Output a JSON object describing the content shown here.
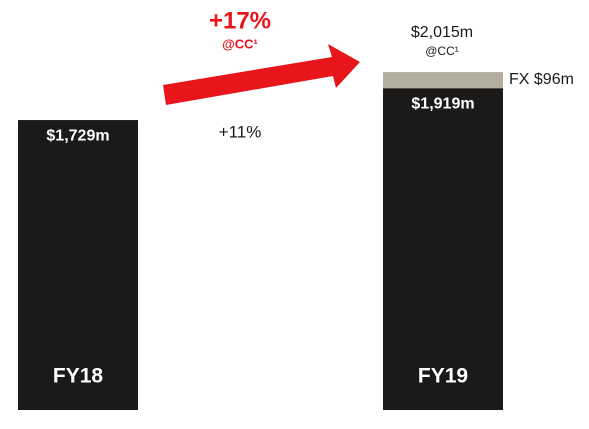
{
  "chart_data": {
    "type": "stacked-bar",
    "categories": [
      "FY18",
      "FY19"
    ],
    "series": [
      {
        "color": "#1c1a19",
        "values": [
          1729,
          1919
        ],
        "value_labels": [
          "$1,729m",
          "$1,919m"
        ]
      },
      {
        "name": "FX",
        "color": "#b5ada0",
        "values": [
          null,
          96
        ],
        "value_labels": [
          null,
          "$96m"
        ]
      }
    ],
    "total_label": "$2,015m",
    "total_sublabel": "@CC¹",
    "growth_cc": "+17%",
    "growth_cc_sublabel": "@CC¹",
    "growth_reported": "+11%",
    "arrow_color": "#e8151b"
  }
}
